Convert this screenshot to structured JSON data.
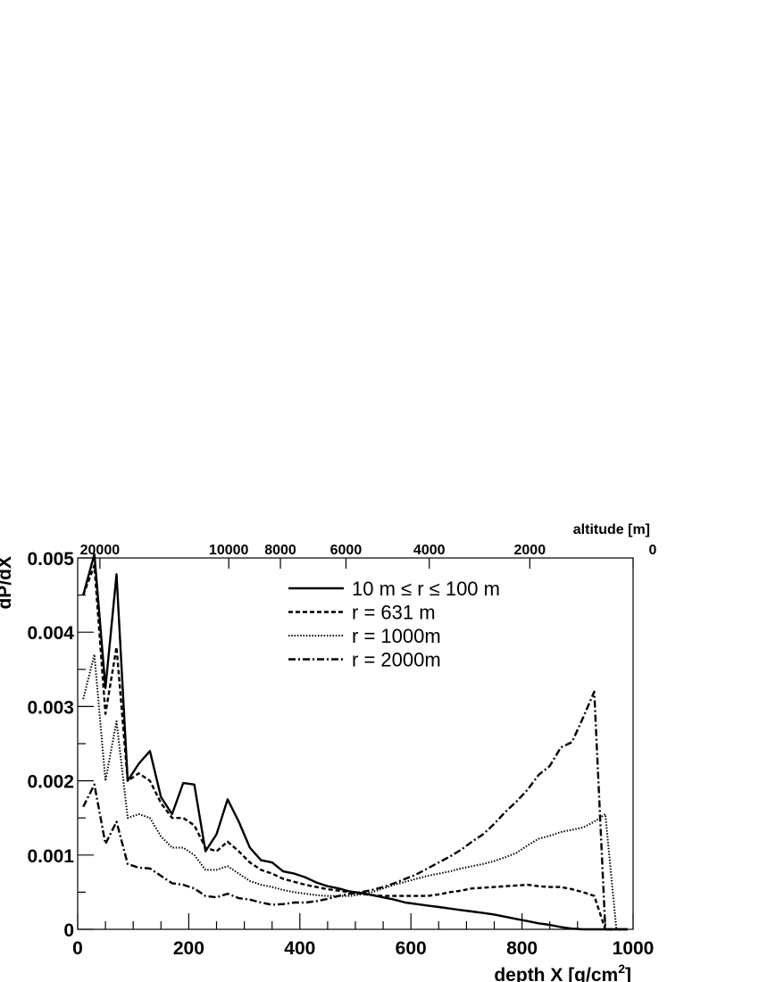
{
  "chart_data": {
    "type": "line",
    "xlabel": "depth X [g/cm",
    "xlabel_sup": "2",
    "xlabel_tail": "]",
    "ylabel": "dP/dX",
    "xlim": [
      0,
      1000
    ],
    "ylim": [
      0,
      0.005
    ],
    "x_ticks": [
      0,
      200,
      400,
      600,
      800,
      1000
    ],
    "x_tick_labels": [
      "0",
      "200",
      "400",
      "600",
      "800",
      "1000"
    ],
    "y_ticks": [
      0,
      0.001,
      0.002,
      0.003,
      0.004,
      0.005
    ],
    "y_tick_labels": [
      "0",
      "0.001",
      "0.002",
      "0.003",
      "0.004",
      "0.005"
    ],
    "top_axis": {
      "label": "altitude [m]",
      "ticks": [
        {
          "depth": 40,
          "label": "20000"
        },
        {
          "depth": 272,
          "label": "10000"
        },
        {
          "depth": 365,
          "label": "8000"
        },
        {
          "depth": 483,
          "label": "6000"
        },
        {
          "depth": 633,
          "label": "4000"
        },
        {
          "depth": 814,
          "label": "2000"
        },
        {
          "depth": 1033,
          "label": "0"
        }
      ]
    },
    "grid": false,
    "legend_position": "top-center",
    "series": [
      {
        "name": "10 m ≤ r ≤ 100 m",
        "style": "solid",
        "x": [
          10,
          30,
          50,
          70,
          90,
          110,
          130,
          150,
          170,
          190,
          210,
          230,
          250,
          270,
          290,
          310,
          330,
          350,
          370,
          390,
          410,
          430,
          450,
          470,
          490,
          510,
          530,
          550,
          570,
          590,
          610,
          630,
          650,
          670,
          690,
          710,
          730,
          750,
          770,
          790,
          810,
          830,
          850,
          870,
          890,
          910,
          930,
          950,
          970,
          990
        ],
        "y": [
          0.0045,
          0.00505,
          0.00325,
          0.00478,
          0.002,
          0.00223,
          0.0024,
          0.00178,
          0.00155,
          0.00197,
          0.00195,
          0.00105,
          0.00128,
          0.00175,
          0.00145,
          0.0011,
          0.00093,
          0.0009,
          0.00078,
          0.00075,
          0.0007,
          0.00063,
          0.00058,
          0.00055,
          0.00051,
          0.00049,
          0.00046,
          0.00043,
          0.0004,
          0.00036,
          0.00034,
          0.00032,
          0.0003,
          0.00028,
          0.00026,
          0.00024,
          0.00022,
          0.0002,
          0.00017,
          0.00014,
          0.00011,
          8e-05,
          6e-05,
          3e-05,
          1e-05,
          0.0,
          0.0,
          0.0,
          0.0,
          0.0
        ]
      },
      {
        "name": "r = 631 m",
        "style": "dashed",
        "x": [
          10,
          30,
          50,
          70,
          90,
          110,
          130,
          150,
          170,
          190,
          210,
          230,
          250,
          270,
          290,
          310,
          330,
          350,
          370,
          390,
          410,
          430,
          450,
          470,
          490,
          510,
          530,
          550,
          570,
          590,
          610,
          630,
          650,
          670,
          690,
          710,
          730,
          750,
          770,
          790,
          810,
          830,
          850,
          870,
          890,
          910,
          930,
          950,
          970,
          990
        ],
        "y": [
          0.0045,
          0.0049,
          0.0029,
          0.0038,
          0.002,
          0.0021,
          0.002,
          0.0017,
          0.0015,
          0.0015,
          0.0014,
          0.0011,
          0.00105,
          0.00118,
          0.00105,
          0.0009,
          0.0008,
          0.00075,
          0.00068,
          0.00064,
          0.0006,
          0.00057,
          0.00054,
          0.00052,
          0.0005,
          0.00048,
          0.00046,
          0.00045,
          0.00045,
          0.00045,
          0.00045,
          0.00045,
          0.00047,
          0.0005,
          0.00052,
          0.00055,
          0.00056,
          0.00057,
          0.00058,
          0.00059,
          0.0006,
          0.00058,
          0.00057,
          0.00057,
          0.00054,
          0.0005,
          0.00045,
          0.0,
          0.0,
          0.0
        ]
      },
      {
        "name": "r = 1000m",
        "style": "dotted",
        "x": [
          10,
          30,
          50,
          70,
          90,
          110,
          130,
          150,
          170,
          190,
          210,
          230,
          250,
          270,
          290,
          310,
          330,
          350,
          370,
          390,
          410,
          430,
          450,
          470,
          490,
          510,
          530,
          550,
          570,
          590,
          610,
          630,
          650,
          670,
          690,
          710,
          730,
          750,
          770,
          790,
          810,
          830,
          850,
          870,
          890,
          910,
          930,
          950,
          970,
          990
        ],
        "y": [
          0.0031,
          0.0037,
          0.002,
          0.0028,
          0.0015,
          0.00155,
          0.0015,
          0.00125,
          0.0011,
          0.0011,
          0.001,
          0.0008,
          0.0008,
          0.00085,
          0.00075,
          0.00065,
          0.0006,
          0.00057,
          0.00053,
          0.0005,
          0.00048,
          0.00046,
          0.00045,
          0.00045,
          0.00045,
          0.00047,
          0.0005,
          0.00055,
          0.0006,
          0.00064,
          0.00068,
          0.00072,
          0.00075,
          0.00078,
          0.00082,
          0.00085,
          0.00088,
          0.00092,
          0.00097,
          0.00103,
          0.00113,
          0.00122,
          0.00126,
          0.00131,
          0.00134,
          0.00137,
          0.00145,
          0.00155,
          0.0,
          0.0
        ]
      },
      {
        "name": "r = 2000m",
        "style": "dashdot",
        "x": [
          10,
          30,
          50,
          70,
          90,
          110,
          130,
          150,
          170,
          190,
          210,
          230,
          250,
          270,
          290,
          310,
          330,
          350,
          370,
          390,
          410,
          430,
          450,
          470,
          490,
          510,
          530,
          550,
          570,
          590,
          610,
          630,
          650,
          670,
          690,
          710,
          730,
          750,
          770,
          790,
          810,
          830,
          850,
          870,
          890,
          910,
          930,
          950,
          970,
          990
        ],
        "y": [
          0.00165,
          0.00195,
          0.00115,
          0.00145,
          0.00088,
          0.00083,
          0.00082,
          0.00072,
          0.00062,
          0.0006,
          0.00055,
          0.00045,
          0.00043,
          0.00048,
          0.00042,
          0.0004,
          0.00036,
          0.00033,
          0.00034,
          0.00036,
          0.00036,
          0.00038,
          0.00041,
          0.00045,
          0.00048,
          0.0005,
          0.00053,
          0.00057,
          0.00062,
          0.00068,
          0.00074,
          0.00082,
          0.0009,
          0.00098,
          0.00107,
          0.00118,
          0.00128,
          0.00142,
          0.00158,
          0.00172,
          0.00188,
          0.00208,
          0.0022,
          0.00245,
          0.00252,
          0.00285,
          0.0032,
          0.0,
          0.0,
          0.0
        ]
      }
    ]
  }
}
